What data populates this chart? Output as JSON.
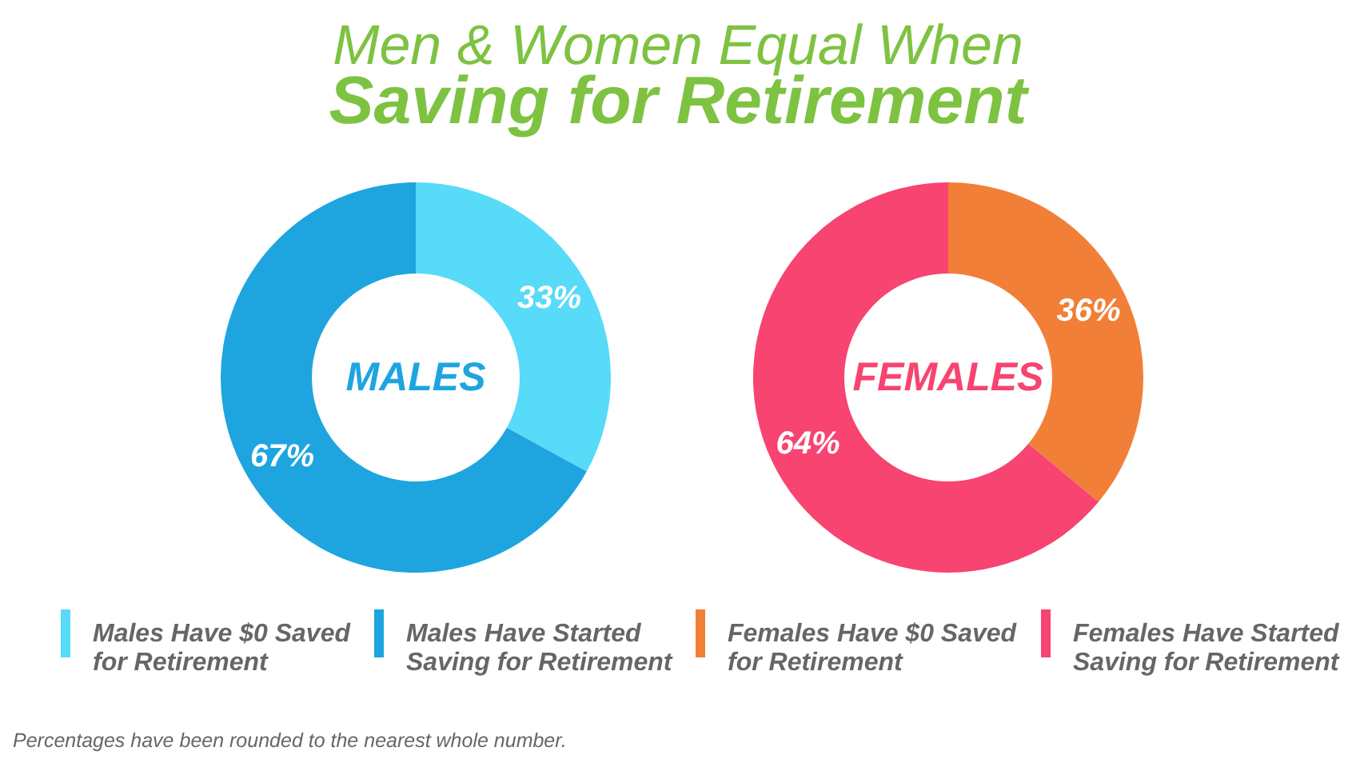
{
  "chart_data": [
    {
      "type": "donut",
      "title": "Men & Women Equal When",
      "subtitle": "Saving for Retirement",
      "categories": [
        "Males Have $0 Saved for Retirement",
        "Males Have Started Saving for Retirement"
      ],
      "series": [
        {
          "name": "MALES",
          "colors": [
            "#58daf9",
            "#1ea5df"
          ],
          "values": [
            33,
            67
          ],
          "value_labels": [
            "33%",
            "67%"
          ]
        }
      ],
      "legend": "bottom",
      "annotations": [
        "Percentages  have been rounded to the nearest whole number."
      ]
    },
    {
      "type": "donut",
      "categories": [
        "Females Have $0 Saved for Retirement",
        "Females Have Started Saving for Retirement"
      ],
      "series": [
        {
          "name": "FEMALES",
          "colors": [
            "#f17f37",
            "#f74470"
          ],
          "values": [
            36,
            64
          ],
          "value_labels": [
            "36%",
            "64%"
          ]
        }
      ],
      "legend": "bottom"
    }
  ]
}
